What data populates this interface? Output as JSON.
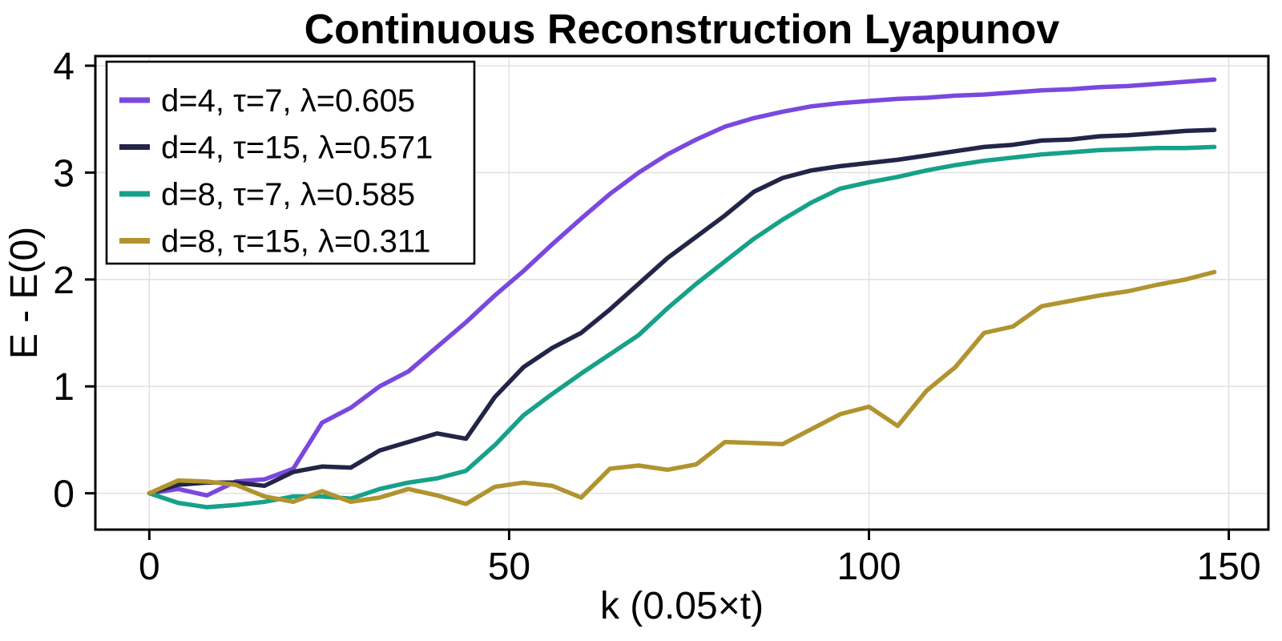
{
  "chart_data": {
    "type": "line",
    "title": "Continuous Reconstruction Lyapunov",
    "xlabel": "k (0.05×t)",
    "ylabel": "E - E(0)",
    "xlim": [
      -7.5,
      155.5
    ],
    "ylim": [
      -0.34,
      4.09
    ],
    "xticks": [
      0,
      50,
      100,
      150
    ],
    "yticks": [
      0,
      1,
      2,
      3,
      4
    ],
    "grid": true,
    "legend_position": "top-left",
    "x": [
      0,
      4,
      8,
      12,
      16,
      20,
      24,
      28,
      32,
      36,
      40,
      44,
      48,
      52,
      56,
      60,
      64,
      68,
      72,
      76,
      80,
      84,
      88,
      92,
      96,
      100,
      104,
      108,
      112,
      116,
      120,
      124,
      128,
      132,
      136,
      140,
      144,
      148
    ],
    "series": [
      {
        "name": "d=4, τ=7, λ=0.605",
        "color": "#7A48DE",
        "values": [
          0.0,
          0.04,
          -0.02,
          0.11,
          0.13,
          0.23,
          0.66,
          0.8,
          1.0,
          1.14,
          1.37,
          1.6,
          1.85,
          2.08,
          2.33,
          2.57,
          2.8,
          3.0,
          3.17,
          3.31,
          3.43,
          3.51,
          3.57,
          3.62,
          3.65,
          3.67,
          3.69,
          3.7,
          3.72,
          3.73,
          3.75,
          3.77,
          3.78,
          3.8,
          3.81,
          3.83,
          3.85,
          3.87
        ]
      },
      {
        "name": "d=4, τ=15, λ=0.571",
        "color": "#222548",
        "values": [
          0.0,
          0.08,
          0.1,
          0.1,
          0.07,
          0.2,
          0.25,
          0.24,
          0.4,
          0.48,
          0.56,
          0.51,
          0.9,
          1.18,
          1.36,
          1.5,
          1.72,
          1.96,
          2.2,
          2.4,
          2.6,
          2.82,
          2.95,
          3.02,
          3.06,
          3.09,
          3.12,
          3.16,
          3.2,
          3.24,
          3.26,
          3.3,
          3.31,
          3.34,
          3.35,
          3.37,
          3.39,
          3.4
        ]
      },
      {
        "name": "d=8, τ=7, λ=0.585",
        "color": "#16A189",
        "values": [
          0.0,
          -0.09,
          -0.13,
          -0.11,
          -0.08,
          -0.03,
          -0.03,
          -0.05,
          0.04,
          0.1,
          0.14,
          0.21,
          0.45,
          0.73,
          0.93,
          1.12,
          1.3,
          1.48,
          1.73,
          1.96,
          2.17,
          2.38,
          2.56,
          2.72,
          2.85,
          2.91,
          2.96,
          3.02,
          3.07,
          3.11,
          3.14,
          3.17,
          3.19,
          3.21,
          3.22,
          3.23,
          3.23,
          3.24
        ]
      },
      {
        "name": "d=8, τ=15, λ=0.311",
        "color": "#B1942F",
        "values": [
          0.0,
          0.12,
          0.11,
          0.08,
          -0.03,
          -0.08,
          0.02,
          -0.08,
          -0.04,
          0.04,
          -0.02,
          -0.1,
          0.06,
          0.1,
          0.07,
          -0.04,
          0.23,
          0.26,
          0.22,
          0.27,
          0.48,
          0.47,
          0.46,
          0.6,
          0.74,
          0.81,
          0.63,
          0.96,
          1.18,
          1.5,
          1.56,
          1.75,
          1.8,
          1.85,
          1.89,
          1.95,
          2.0,
          2.07
        ]
      }
    ],
    "style": {
      "background": "#ffffff",
      "frame_color": "#000000",
      "grid_color": "#e2e2e2",
      "tick_label_size": 48,
      "axis_label_size": 48,
      "title_size": 52,
      "legend_font_size": 40,
      "line_width": 5.5
    }
  }
}
